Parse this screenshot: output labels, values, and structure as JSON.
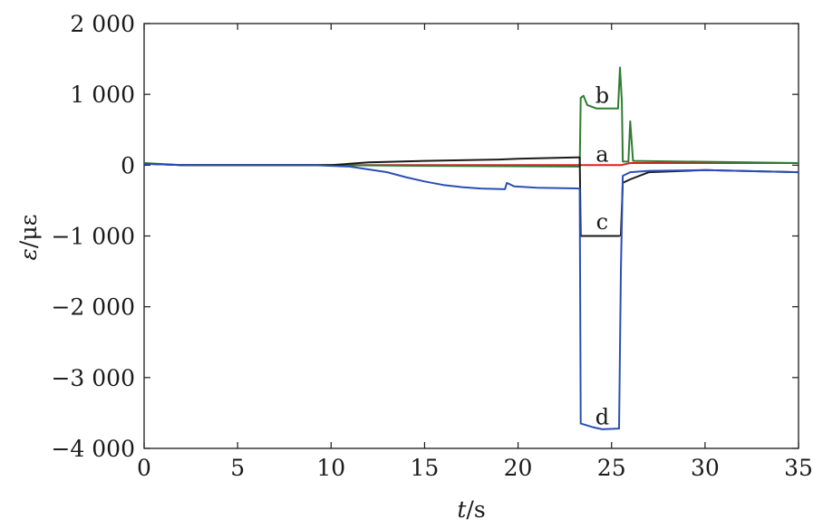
{
  "chart_data": {
    "type": "line",
    "title": "",
    "xlabel_var": "t",
    "xlabel_unit": "/s",
    "ylabel_var": "ε",
    "ylabel_unit": "/με",
    "xlim": [
      0,
      35
    ],
    "ylim": [
      -4000,
      2000
    ],
    "grid": false,
    "legend": "none",
    "x_ticks": [
      0,
      5,
      10,
      15,
      20,
      25,
      30,
      35
    ],
    "x_tick_labels": [
      "0",
      "5",
      "10",
      "15",
      "20",
      "25",
      "30",
      "35"
    ],
    "y_ticks": [
      2000,
      1000,
      0,
      -1000,
      -2000,
      -3000,
      -4000
    ],
    "y_tick_labels": [
      "2 000",
      "1 000",
      "0",
      "−1 000",
      "−2 000",
      "−3 000",
      "−4 000"
    ],
    "series": [
      {
        "label": "a",
        "color": "#e02020",
        "label_at": [
          24.5,
          150
        ],
        "points": [
          [
            0,
            20
          ],
          [
            2,
            0
          ],
          [
            10,
            0
          ],
          [
            23.4,
            0
          ],
          [
            25.5,
            0
          ],
          [
            26,
            30
          ],
          [
            35,
            30
          ]
        ]
      },
      {
        "label": "b",
        "color": "#2e7d32",
        "label_at": [
          24.5,
          980
        ],
        "points": [
          [
            0,
            30
          ],
          [
            2,
            0
          ],
          [
            10,
            0
          ],
          [
            15,
            -10
          ],
          [
            23.3,
            -20
          ],
          [
            23.35,
            950
          ],
          [
            23.5,
            980
          ],
          [
            23.7,
            850
          ],
          [
            24.2,
            800
          ],
          [
            25.35,
            800
          ],
          [
            25.45,
            1380
          ],
          [
            25.55,
            900
          ],
          [
            25.6,
            50
          ],
          [
            25.9,
            50
          ],
          [
            26.0,
            620
          ],
          [
            26.15,
            60
          ],
          [
            35,
            30
          ]
        ]
      },
      {
        "label": "c",
        "color": "#1a1a1a",
        "label_at": [
          24.5,
          -800
        ],
        "points": [
          [
            0,
            20
          ],
          [
            2,
            0
          ],
          [
            10,
            0
          ],
          [
            11,
            20
          ],
          [
            12,
            40
          ],
          [
            15,
            60
          ],
          [
            19,
            80
          ],
          [
            20,
            90
          ],
          [
            23.3,
            110
          ],
          [
            23.35,
            -1000
          ],
          [
            24,
            -1000
          ],
          [
            25.4,
            -1000
          ],
          [
            25.5,
            -990
          ],
          [
            25.6,
            -250
          ],
          [
            26,
            -200
          ],
          [
            27,
            -100
          ],
          [
            30,
            -70
          ],
          [
            35,
            -100
          ]
        ]
      },
      {
        "label": "d",
        "color": "#2a4fb5",
        "label_at": [
          24.5,
          -3560
        ],
        "points": [
          [
            0,
            20
          ],
          [
            2,
            0
          ],
          [
            9,
            0
          ],
          [
            11,
            -20
          ],
          [
            12,
            -60
          ],
          [
            13,
            -100
          ],
          [
            14,
            -170
          ],
          [
            15,
            -230
          ],
          [
            16,
            -280
          ],
          [
            17,
            -310
          ],
          [
            18,
            -330
          ],
          [
            19.3,
            -340
          ],
          [
            19.4,
            -250
          ],
          [
            19.8,
            -300
          ],
          [
            21,
            -320
          ],
          [
            23.3,
            -330
          ],
          [
            23.35,
            -3650
          ],
          [
            24,
            -3700
          ],
          [
            24.5,
            -3730
          ],
          [
            25.4,
            -3720
          ],
          [
            25.5,
            -1500
          ],
          [
            25.6,
            -150
          ],
          [
            26,
            -100
          ],
          [
            27,
            -80
          ],
          [
            30,
            -70
          ],
          [
            35,
            -100
          ]
        ]
      }
    ]
  }
}
